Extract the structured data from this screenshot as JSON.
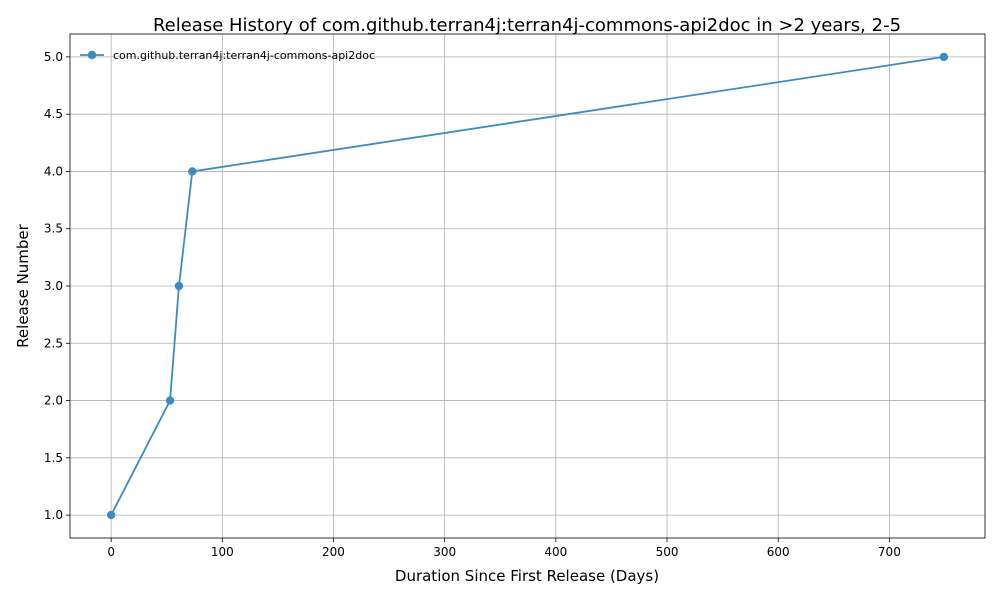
{
  "chart_data": {
    "type": "line",
    "title": "Release History of com.github.terran4j:terran4j-commons-api2doc in >2 years, 2-5",
    "xlabel": "Duration Since First Release (Days)",
    "ylabel": "Release Number",
    "xlim": [
      -37,
      786
    ],
    "ylim": [
      0.8,
      5.2
    ],
    "xticks": [
      0,
      100,
      200,
      300,
      400,
      500,
      600,
      700
    ],
    "xtick_labels": [
      "0",
      "100",
      "200",
      "300",
      "400",
      "500",
      "600",
      "700"
    ],
    "yticks": [
      1.0,
      1.5,
      2.0,
      2.5,
      3.0,
      3.5,
      4.0,
      4.5,
      5.0
    ],
    "ytick_labels": [
      "1.0",
      "1.5",
      "2.0",
      "2.5",
      "3.0",
      "3.5",
      "4.0",
      "4.5",
      "5.0"
    ],
    "grid": true,
    "legend_position": "top-left",
    "series": [
      {
        "name": "com.github.terran4j:terran4j-commons-api2doc",
        "color": "#3d8bbf",
        "marker": "circle",
        "x": [
          0,
          53,
          61,
          73,
          749
        ],
        "y": [
          1,
          2,
          3,
          4,
          5
        ]
      }
    ]
  }
}
